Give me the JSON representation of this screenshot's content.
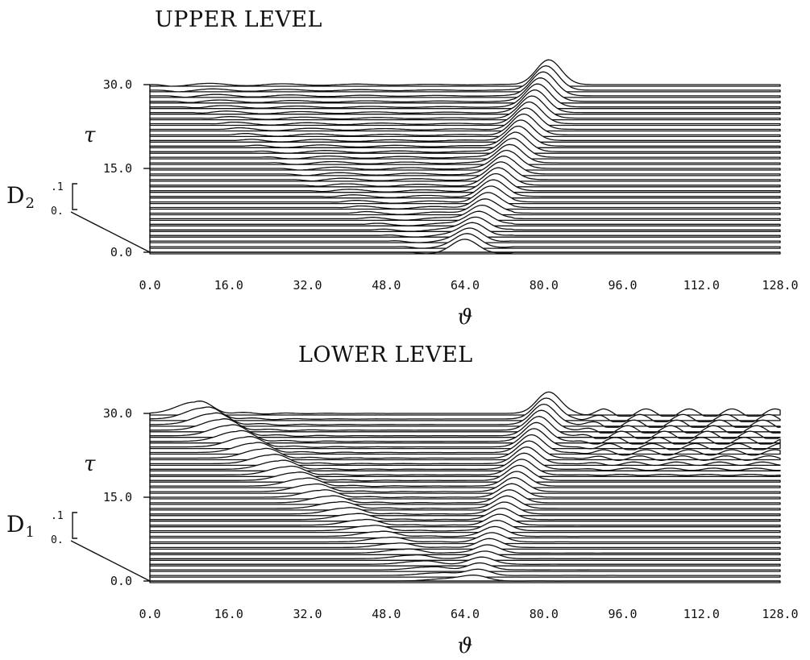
{
  "chart_data": [
    {
      "type": "area",
      "title": "UPPER LEVEL",
      "xlabel": "ϑ",
      "ylabel": "τ",
      "xlim": [
        0,
        128
      ],
      "ylim": [
        0,
        30
      ],
      "x_ticks": [
        "0.0",
        "16.0",
        "32.0",
        "48.0",
        "64.0",
        "80.0",
        "96.0",
        "112.0",
        "128.0"
      ],
      "y_ticks": [
        "0.0",
        "15.0",
        "30.0"
      ],
      "amplitude_label": "D",
      "amplitude_subscript": "2",
      "amplitude_scale_ticks": [
        ".1",
        "0."
      ],
      "amplitude_scale_values": [
        0,
        0.1
      ],
      "tau_step": 1,
      "series": [
        {
          "kind": "main_pulse",
          "center_start": 64,
          "center_end": 81,
          "amp_start": 0.052,
          "amp_end": 0.11,
          "width": 2.5
        },
        {
          "kind": "wake_ripples",
          "front_start": 52,
          "front_end": 0,
          "amp": 0.008
        }
      ]
    },
    {
      "type": "area",
      "title": "LOWER LEVEL",
      "xlabel": "ϑ",
      "ylabel": "τ",
      "xlim": [
        0,
        128
      ],
      "ylim": [
        0,
        30
      ],
      "x_ticks": [
        "0.0",
        "16.0",
        "32.0",
        "48.0",
        "64.0",
        "80.0",
        "96.0",
        "112.0",
        "128.0"
      ],
      "y_ticks": [
        "0.0",
        "15.0",
        "30.0"
      ],
      "amplitude_label": "D",
      "amplitude_subscript": "1",
      "amplitude_scale_ticks": [
        ".1",
        "0."
      ],
      "amplitude_scale_values": [
        0,
        0.1
      ],
      "tau_step": 1,
      "series": [
        {
          "kind": "main_pulse",
          "center_start": 66,
          "center_end": 81,
          "amp_start": 0.025,
          "amp_end": 0.095,
          "width": 2.4
        },
        {
          "kind": "left_moving_wave",
          "center_start": 60,
          "center_end": 9,
          "amp_start": 0.01,
          "amp_end": 0.05,
          "width": 3.5
        },
        {
          "kind": "right_ripples",
          "start_tau": 18,
          "amp": 0.02
        }
      ]
    }
  ]
}
